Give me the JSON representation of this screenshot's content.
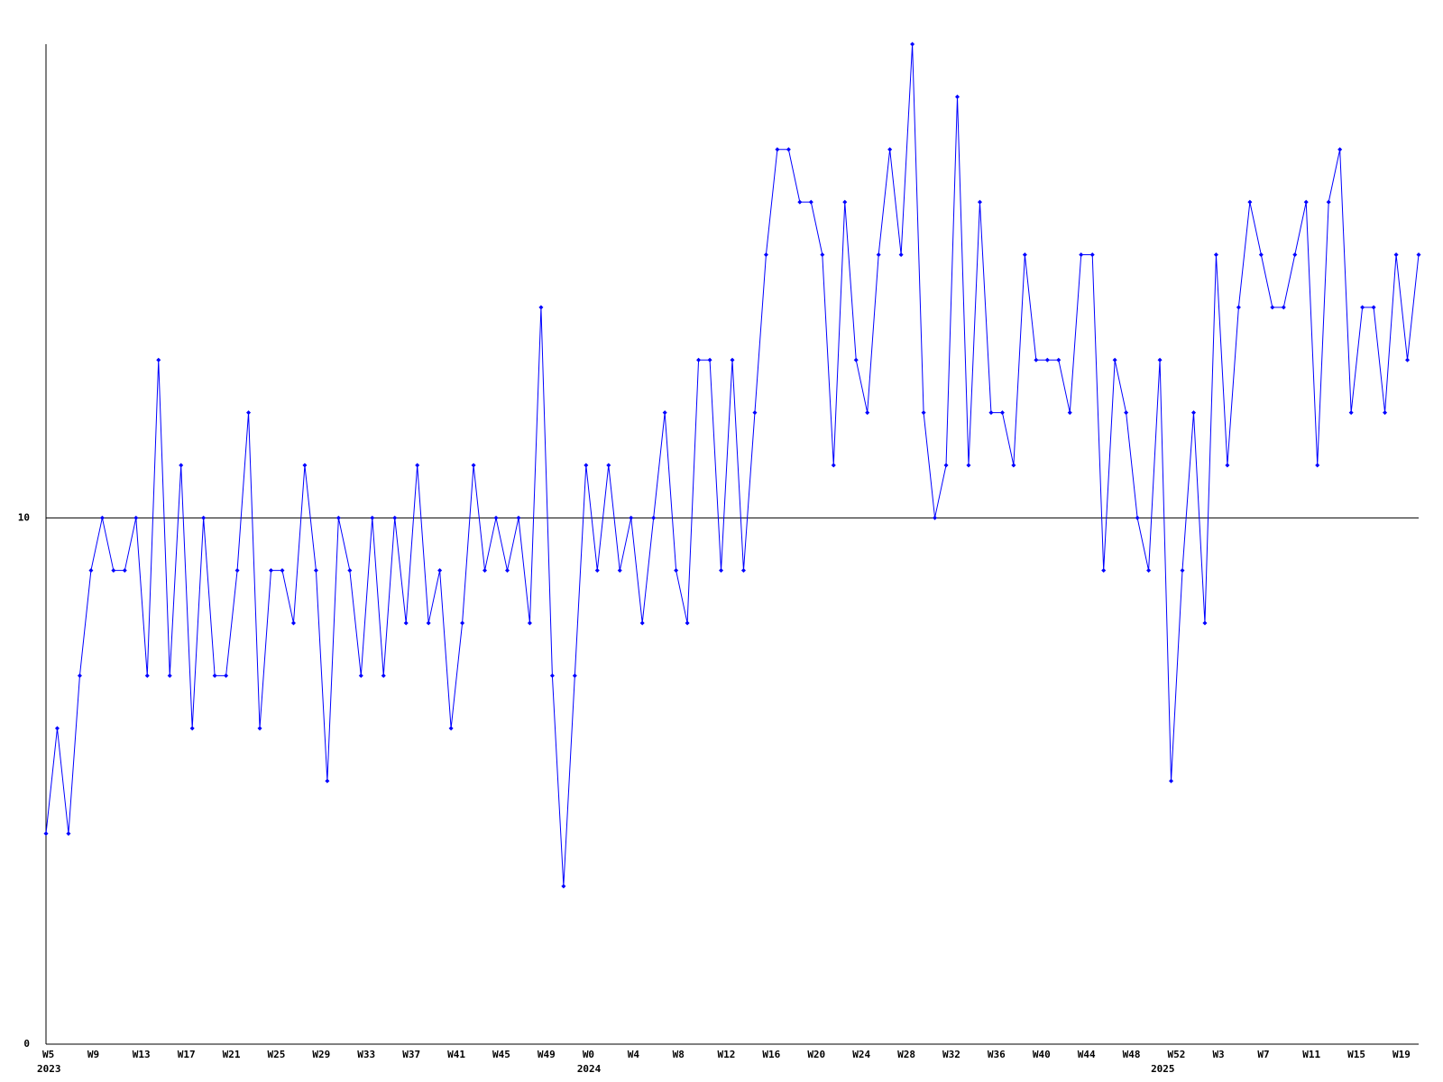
{
  "chart_data": {
    "type": "line",
    "categories": [
      "W5",
      null,
      null,
      null,
      "W9",
      null,
      null,
      null,
      "W13",
      null,
      null,
      null,
      "W17",
      null,
      null,
      null,
      "W21",
      null,
      null,
      null,
      "W25",
      null,
      null,
      null,
      "W29",
      null,
      null,
      null,
      "W33",
      null,
      null,
      null,
      "W37",
      null,
      null,
      null,
      "W41",
      null,
      null,
      null,
      "W45",
      null,
      null,
      null,
      "W49",
      null,
      null,
      null,
      "W0",
      null,
      null,
      null,
      "W4",
      null,
      null,
      null,
      "W8",
      null,
      null,
      null,
      "W12",
      null,
      null,
      null,
      "W16",
      null,
      null,
      null,
      "W20",
      null,
      null,
      null,
      "W24",
      null,
      null,
      null,
      "W28",
      null,
      null,
      null,
      "W32",
      null,
      null,
      null,
      "W36",
      null,
      null,
      null,
      "W40",
      null,
      null,
      null,
      "W44",
      null,
      null,
      null,
      "W48",
      null,
      null,
      null,
      "W52",
      null,
      null,
      null,
      "W3",
      null,
      null,
      null,
      "W7",
      null,
      null,
      null,
      "W11",
      null,
      null,
      null,
      "W15",
      null,
      null,
      null,
      "W19",
      null,
      null
    ],
    "year_labels": [
      "2023",
      null,
      null,
      null,
      null,
      null,
      null,
      null,
      null,
      null,
      null,
      null,
      null,
      null,
      null,
      null,
      null,
      null,
      null,
      null,
      null,
      null,
      null,
      null,
      null,
      null,
      null,
      null,
      null,
      null,
      null,
      null,
      null,
      null,
      null,
      null,
      null,
      null,
      null,
      null,
      null,
      null,
      null,
      null,
      null,
      null,
      null,
      null,
      "2024",
      null,
      null,
      null,
      null,
      null,
      null,
      null,
      null,
      null,
      null,
      null,
      null,
      null,
      null,
      null,
      null,
      null,
      null,
      null,
      null,
      null,
      null,
      null,
      null,
      null,
      null,
      null,
      null,
      null,
      null,
      null,
      null,
      null,
      null,
      null,
      null,
      null,
      null,
      null,
      null,
      null,
      null,
      null,
      null,
      null,
      null,
      null,
      null,
      null,
      null,
      "2025",
      null,
      null,
      null,
      null,
      null,
      null,
      null,
      null,
      null,
      null,
      null,
      null,
      null,
      null,
      null,
      null,
      null,
      null,
      null,
      null,
      null
    ],
    "series": [
      {
        "color": "#0000ff",
        "values": [
          4,
          6,
          4,
          7,
          9,
          10,
          9,
          9,
          10,
          7,
          13,
          7,
          11,
          6,
          10,
          7,
          7,
          9,
          12,
          6,
          9,
          9,
          8,
          11,
          9,
          5,
          10,
          9,
          7,
          10,
          7,
          10,
          8,
          11,
          8,
          9,
          6,
          8,
          11,
          9,
          10,
          9,
          10,
          8,
          14,
          7,
          3,
          7,
          11,
          9,
          11,
          9,
          10,
          8,
          10,
          12,
          9,
          8,
          13,
          13,
          9,
          13,
          9,
          12,
          15,
          17,
          17,
          16,
          16,
          15,
          11,
          16,
          13,
          12,
          15,
          17,
          15,
          19,
          12,
          10,
          11,
          18,
          11,
          16,
          12,
          12,
          11,
          15,
          13,
          13,
          13,
          12,
          15,
          15,
          9,
          13,
          12,
          10,
          9,
          13,
          5,
          9,
          12,
          8,
          15,
          11,
          14,
          16,
          15,
          14,
          14,
          15,
          16,
          11,
          16,
          17,
          12,
          14,
          14,
          12,
          15,
          13,
          15
        ]
      }
    ],
    "ylim": [
      0,
      19
    ],
    "yticks": [
      0,
      10
    ],
    "grid": true
  }
}
